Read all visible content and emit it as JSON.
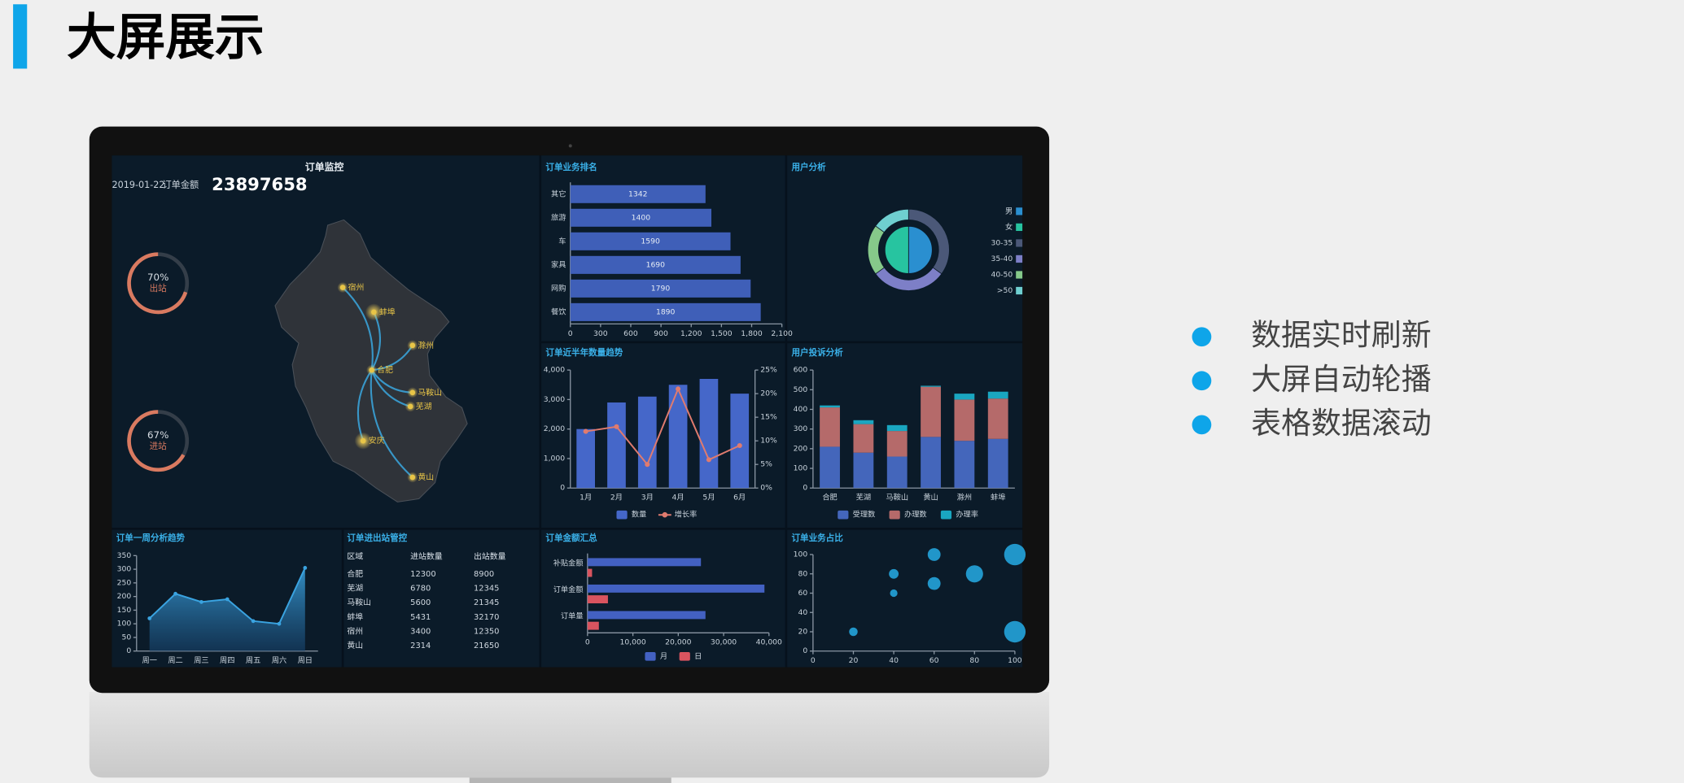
{
  "header": {
    "title": "大屏展示"
  },
  "bullets": [
    "数据实时刷新",
    "大屏自动轮播",
    "表格数据滚动"
  ],
  "monitor": {
    "title": "订单监控",
    "date": "2019-01-22",
    "amount_label": "订单金额",
    "amount": 23897658,
    "gauges": [
      {
        "name": "出站",
        "value": 70,
        "value_label": "70%"
      },
      {
        "name": "进站",
        "value": 67,
        "value_label": "67%"
      }
    ],
    "cities": [
      "宿州",
      "蚌埠",
      "滁州",
      "合肥",
      "马鞍山",
      "芜湖",
      "安庆",
      "黄山"
    ]
  },
  "table": {
    "title": "订单进出站管控",
    "header": [
      "区域",
      "进站数量",
      "出站数量"
    ],
    "rows": [
      [
        "合肥",
        12300,
        8900
      ],
      [
        "芜湖",
        6780,
        12345
      ],
      [
        "马鞍山",
        5600,
        21345
      ],
      [
        "蚌埠",
        5431,
        32170
      ],
      [
        "宿州",
        3400,
        12350
      ],
      [
        "黄山",
        2314,
        21650
      ]
    ]
  },
  "chart_data": [
    {
      "type": "hbar",
      "title": "订单业务排名",
      "categories": [
        "其它",
        "旅游",
        "车",
        "家具",
        "网购",
        "餐饮"
      ],
      "values": [
        1342,
        1400,
        1590,
        1690,
        1790,
        1890
      ],
      "color": "#3f5fb8",
      "xlim": [
        0,
        2100
      ],
      "xticks": [
        0,
        300,
        600,
        900,
        {
          "value": 1200,
          "label": "1,200"
        },
        {
          "value": 1500,
          "label": "1,500"
        },
        {
          "value": 1800,
          "label": "1,800"
        },
        {
          "value": 2100,
          "label": "2,100"
        }
      ]
    },
    {
      "type": "pie",
      "title": "用户分析",
      "inner": {
        "categories": [
          "男",
          "女"
        ],
        "values": [
          50,
          50
        ],
        "colors": [
          "#2a8fd0",
          "#27c4a0"
        ]
      },
      "outer": {
        "categories": [
          "30-35",
          "35-40",
          "40-50",
          ">50"
        ],
        "values": [
          35,
          30,
          20,
          15
        ],
        "colors": [
          "#4b5878",
          "#7d7fc7",
          "#86c98a",
          "#6fcfd0"
        ]
      }
    },
    {
      "type": "combo",
      "title": "订单近半年数量趋势",
      "categories": [
        "1月",
        "2月",
        "3月",
        "4月",
        "5月",
        "6月"
      ],
      "series": [
        {
          "name": "数量",
          "kind": "bar",
          "color": "#4567c9",
          "values": [
            2000,
            2900,
            3100,
            3500,
            3700,
            3200
          ]
        },
        {
          "name": "增长率",
          "kind": "line",
          "axis": "y2",
          "color": "#e07b6e",
          "values": [
            12,
            13,
            5,
            21,
            6,
            9
          ]
        }
      ],
      "ylim": [
        0,
        4000
      ],
      "yticks": [
        0,
        {
          "value": 1000,
          "label": "1,000"
        },
        {
          "value": 2000,
          "label": "2,000"
        },
        {
          "value": 3000,
          "label": "3,000"
        },
        {
          "value": 4000,
          "label": "4,000"
        }
      ],
      "y2lim": [
        0,
        25
      ],
      "y2ticks": [
        {
          "value": 0,
          "label": "0%"
        },
        {
          "value": 5,
          "label": "5%"
        },
        {
          "value": 10,
          "label": "10%"
        },
        {
          "value": 15,
          "label": "15%"
        },
        {
          "value": 20,
          "label": "20%"
        },
        {
          "value": 25,
          "label": "25%"
        }
      ]
    },
    {
      "type": "stacked_bar",
      "title": "用户投诉分析",
      "categories": [
        "合肥",
        "芜湖",
        "马鞍山",
        "黄山",
        "滁州",
        "蚌埠"
      ],
      "series": [
        {
          "name": "受理数",
          "color": "#4466bb",
          "values": [
            210,
            180,
            160,
            260,
            240,
            250
          ]
        },
        {
          "name": "办理数",
          "color": "#b56a6a",
          "values": [
            200,
            145,
            130,
            255,
            210,
            205
          ]
        },
        {
          "name": "办理率",
          "color": "#1aa6c0",
          "values": [
            10,
            20,
            30,
            5,
            30,
            35
          ]
        }
      ],
      "ylim": [
        0,
        600
      ],
      "yticks": [
        0,
        100,
        200,
        300,
        400,
        500,
        600
      ]
    },
    {
      "type": "area",
      "title": "订单一周分析趋势",
      "categories": [
        "周一",
        "周二",
        "周三",
        "周四",
        "周五",
        "周六",
        "周日"
      ],
      "values": [
        120,
        210,
        180,
        190,
        110,
        100,
        305
      ],
      "color": "#3aa3e0",
      "ylim": [
        0,
        350
      ],
      "yticks": [
        0,
        50,
        100,
        150,
        200,
        250,
        300,
        350
      ]
    },
    {
      "type": "grouped_hbar",
      "title": "订单金额汇总",
      "categories": [
        "补贴金额",
        "订单金额",
        "订单量"
      ],
      "series": [
        {
          "name": "月",
          "color": "#4361c2",
          "values": [
            25000,
            39000,
            26000
          ]
        },
        {
          "name": "日",
          "color": "#d9545f",
          "values": [
            1000,
            4500,
            2500
          ]
        }
      ],
      "xlim": [
        0,
        40000
      ],
      "xticks": [
        0,
        {
          "value": 10000,
          "label": "10,000"
        },
        {
          "value": 20000,
          "label": "20,000"
        },
        {
          "value": 30000,
          "label": "30,000"
        },
        {
          "value": 40000,
          "label": "40,000"
        }
      ]
    },
    {
      "type": "scatter",
      "title": "订单业务占比",
      "x": [
        20,
        40,
        40,
        60,
        60,
        80,
        100,
        100
      ],
      "y": [
        20,
        80,
        60,
        100,
        70,
        80,
        100,
        20
      ],
      "size": [
        4,
        4.5,
        3.5,
        6,
        6,
        8,
        10,
        10
      ],
      "color": "#2196c9",
      "xlim": [
        0,
        100
      ],
      "xticks": [
        0,
        20,
        40,
        60,
        80,
        100
      ],
      "ylim": [
        0,
        100
      ],
      "yticks": [
        0,
        20,
        40,
        60,
        80,
        100
      ]
    }
  ]
}
